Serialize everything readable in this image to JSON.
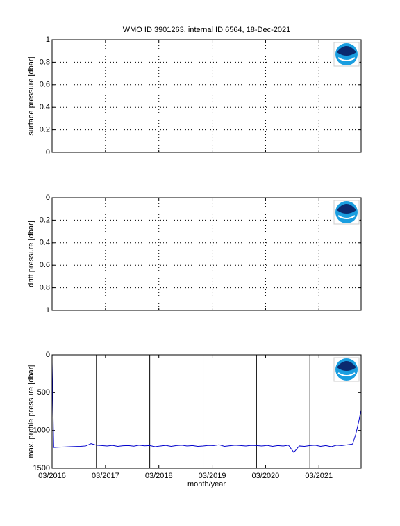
{
  "chart_data": [
    {
      "type": "line",
      "title": "WMO ID 3901263, internal ID 6564, 18-Dec-2021",
      "ylabel": "surface pressure [dbar]",
      "xlim": [
        2016.17,
        2021.96
      ],
      "xticks": [
        2016.17,
        2017.17,
        2018.17,
        2019.17,
        2020.17,
        2021.17
      ],
      "ylim": [
        0,
        1
      ],
      "yticks": [
        0,
        0.2,
        0.4,
        0.6,
        0.8,
        1
      ],
      "y_reversed": false,
      "grid": true
    },
    {
      "type": "line",
      "ylabel": "drift pressure [dbar]",
      "xlim": [
        2016.17,
        2021.96
      ],
      "xticks": [
        2016.17,
        2017.17,
        2018.17,
        2019.17,
        2020.17,
        2021.17
      ],
      "ylim": [
        0,
        1
      ],
      "yticks": [
        0,
        0.2,
        0.4,
        0.6,
        0.8,
        1
      ],
      "y_reversed": true,
      "grid": true
    },
    {
      "type": "line",
      "ylabel": "max. profile pressure [dbar]",
      "xlabel": "month/year",
      "xlim": [
        2016.17,
        2021.96
      ],
      "xticks": [
        {
          "value": 2016.17,
          "label": "03/2016"
        },
        {
          "value": 2017.17,
          "label": "03/2017"
        },
        {
          "value": 2018.17,
          "label": "03/2018"
        },
        {
          "value": 2019.17,
          "label": "03/2019"
        },
        {
          "value": 2020.17,
          "label": "03/2020"
        },
        {
          "value": 2021.17,
          "label": "03/2021"
        }
      ],
      "ylim": [
        0,
        1500
      ],
      "yticks": [
        0,
        500,
        1000,
        1500
      ],
      "y_reversed": true,
      "grid": false,
      "vlines": [
        2017.0,
        2018.0,
        2019.0,
        2020.0,
        2021.0
      ],
      "vline_color": "#000000",
      "x": [
        2016.17,
        2016.2,
        2016.3,
        2016.4,
        2016.5,
        2016.6,
        2016.7,
        2016.8,
        2016.9,
        2017.0,
        2017.1,
        2017.2,
        2017.3,
        2017.4,
        2017.5,
        2017.6,
        2017.7,
        2017.8,
        2017.9,
        2018.0,
        2018.1,
        2018.2,
        2018.3,
        2018.4,
        2018.5,
        2018.6,
        2018.7,
        2018.8,
        2018.9,
        2019.0,
        2019.1,
        2019.2,
        2019.3,
        2019.4,
        2019.5,
        2019.6,
        2019.7,
        2019.8,
        2019.9,
        2020.0,
        2020.1,
        2020.2,
        2020.3,
        2020.4,
        2020.5,
        2020.6,
        2020.7,
        2020.8,
        2020.9,
        2021.0,
        2021.1,
        2021.2,
        2021.3,
        2021.4,
        2021.5,
        2021.6,
        2021.7,
        2021.8,
        2021.86,
        2021.91,
        2021.96
      ],
      "series": [
        {
          "name": "max. profile pressure",
          "color": "#0000cc",
          "values": [
            100,
            1225,
            1220,
            1218,
            1215,
            1212,
            1210,
            1205,
            1175,
            1195,
            1200,
            1205,
            1198,
            1210,
            1202,
            1200,
            1208,
            1195,
            1203,
            1200,
            1215,
            1205,
            1198,
            1210,
            1200,
            1195,
            1205,
            1200,
            1210,
            1205,
            1198,
            1200,
            1190,
            1210,
            1202,
            1195,
            1200,
            1205,
            1198,
            1200,
            1205,
            1198,
            1210,
            1200,
            1205,
            1195,
            1290,
            1205,
            1210,
            1200,
            1195,
            1210,
            1200,
            1215,
            1195,
            1200,
            1190,
            1180,
            1050,
            900,
            730
          ]
        }
      ]
    }
  ]
}
